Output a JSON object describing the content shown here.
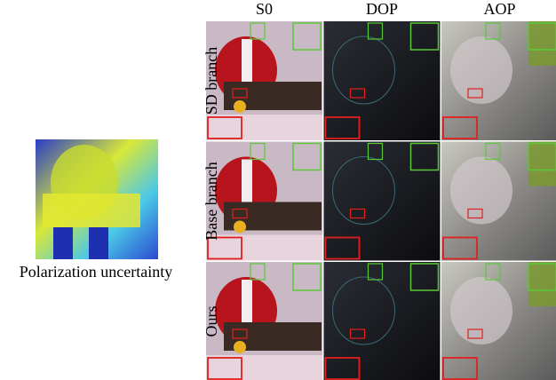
{
  "columns": [
    "S0",
    "DOP",
    "AOP"
  ],
  "rows": [
    "SD branch",
    "Base branch",
    "Ours"
  ],
  "side": {
    "caption": "Polarization uncertainty"
  }
}
